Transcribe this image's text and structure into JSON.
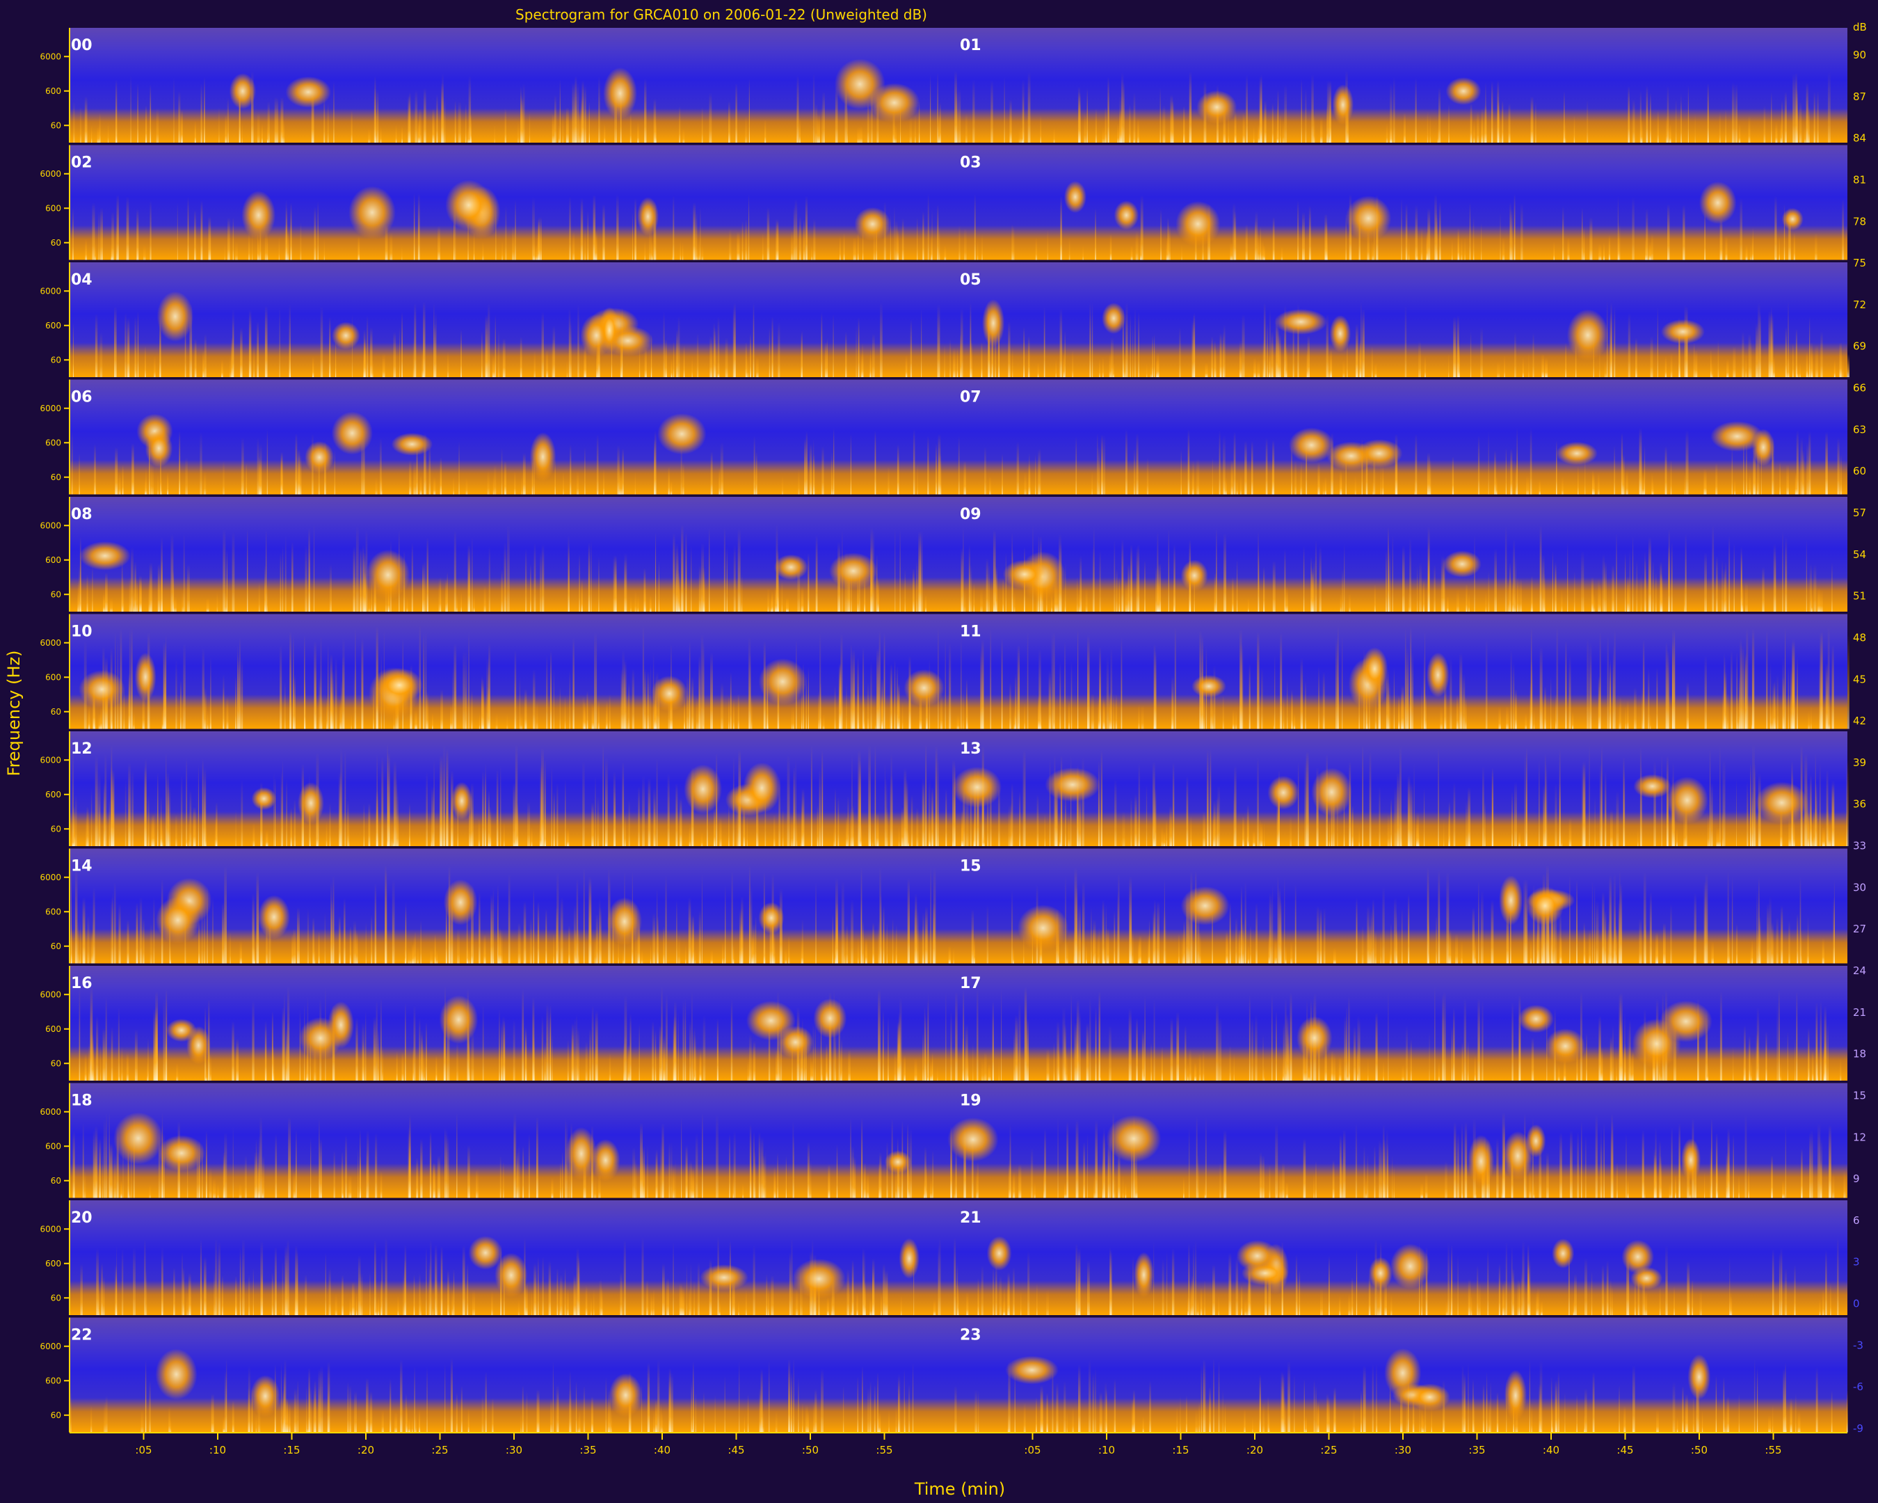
{
  "chart_data": {
    "type": "heatmap",
    "title": "Spectrogram for GRCA010 on 2006-01-22 (Unweighted dB)",
    "xlabel": "Time (min)",
    "ylabel": "Frequency (Hz)",
    "row_labels": [
      "00",
      "01",
      "02",
      "03",
      "04",
      "05",
      "06",
      "07",
      "08",
      "09",
      "10",
      "11",
      "12",
      "13",
      "14",
      "15",
      "16",
      "17",
      "18",
      "19",
      "20",
      "21",
      "22",
      "23"
    ],
    "y_tick_labels": [
      "6000",
      "600",
      "60"
    ],
    "x_tick_labels_first_half": [
      ":05",
      ":10",
      ":15",
      ":20",
      ":25",
      ":30",
      ":35",
      ":40",
      ":45",
      ":50",
      ":55"
    ],
    "x_tick_labels_second_half": [
      ":05",
      ":10",
      ":15",
      ":20",
      ":25",
      ":30",
      ":35",
      ":40",
      ":45",
      ":50",
      ":55"
    ],
    "colorbar_unit": "dB",
    "colorbar_values": [
      90,
      87,
      84,
      81,
      78,
      75,
      72,
      69,
      66,
      63,
      60,
      57,
      54,
      51,
      48,
      45,
      42,
      39,
      36,
      33,
      30,
      27,
      24,
      21,
      18,
      15,
      12,
      9,
      6,
      3,
      0,
      -3,
      -6,
      -9
    ],
    "colors": {
      "background": "#1a0a3a",
      "low_db": "#5a3fb0",
      "mid_db": "#2a20e0",
      "high_db": "#ff9a00",
      "peak_db": "#fff0c0",
      "axis": "#ffd700"
    },
    "row_activity": [
      0.35,
      0.45,
      0.3,
      0.35,
      0.4,
      0.5,
      0.25,
      0.4,
      0.5,
      0.7,
      0.85,
      0.8,
      0.85,
      0.75,
      0.8,
      0.7,
      0.75,
      0.65,
      0.6,
      0.55,
      0.5,
      0.45,
      0.45,
      0.4
    ]
  }
}
